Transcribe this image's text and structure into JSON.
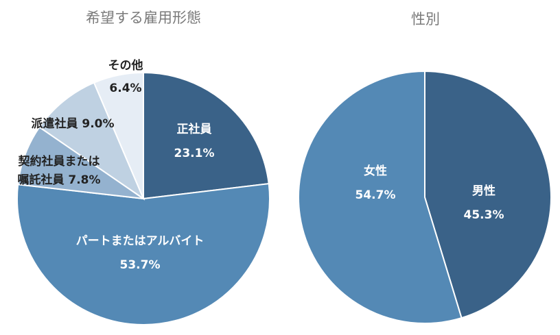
{
  "chart_data": [
    {
      "type": "pie",
      "title": "希望する雇用形態",
      "slices": [
        {
          "label": "正社員",
          "value": 23.1,
          "value_text": "23.1%",
          "color": "#3a6288"
        },
        {
          "label": "パートまたはアルバイト",
          "value": 53.7,
          "value_text": "53.7%",
          "color": "#5489b5"
        },
        {
          "label": "契約社員または嘱託社員",
          "value": 7.8,
          "value_text": "7.8%",
          "color": "#94b2cf"
        },
        {
          "label": "派遣社員",
          "value": 9.0,
          "value_text": "9.0%",
          "color": "#bfd1e2"
        },
        {
          "label": "その他",
          "value": 6.4,
          "value_text": "6.4%",
          "color": "#e6edf5"
        }
      ]
    },
    {
      "type": "pie",
      "title": "性別",
      "slices": [
        {
          "label": "男性",
          "value": 45.3,
          "value_text": "45.3%",
          "color": "#3a6288"
        },
        {
          "label": "女性",
          "value": 54.7,
          "value_text": "54.7%",
          "color": "#5489b5"
        }
      ]
    }
  ],
  "texts": {
    "lbl0_name": "正社員",
    "lbl0_pct": "23.1%",
    "lbl1_name": "パートまたはアルバイト",
    "lbl1_pct": "53.7%",
    "lbl2_line1": "契約社員または",
    "lbl2_line2": "嘱託社員 7.8%",
    "lbl3": "派遣社員 9.0%",
    "lbl4_name": "その他",
    "lbl4_pct": "6.4%",
    "g_lbl0_name": "男性",
    "g_lbl0_pct": "45.3%",
    "g_lbl1_name": "女性",
    "g_lbl1_pct": "54.7%"
  }
}
